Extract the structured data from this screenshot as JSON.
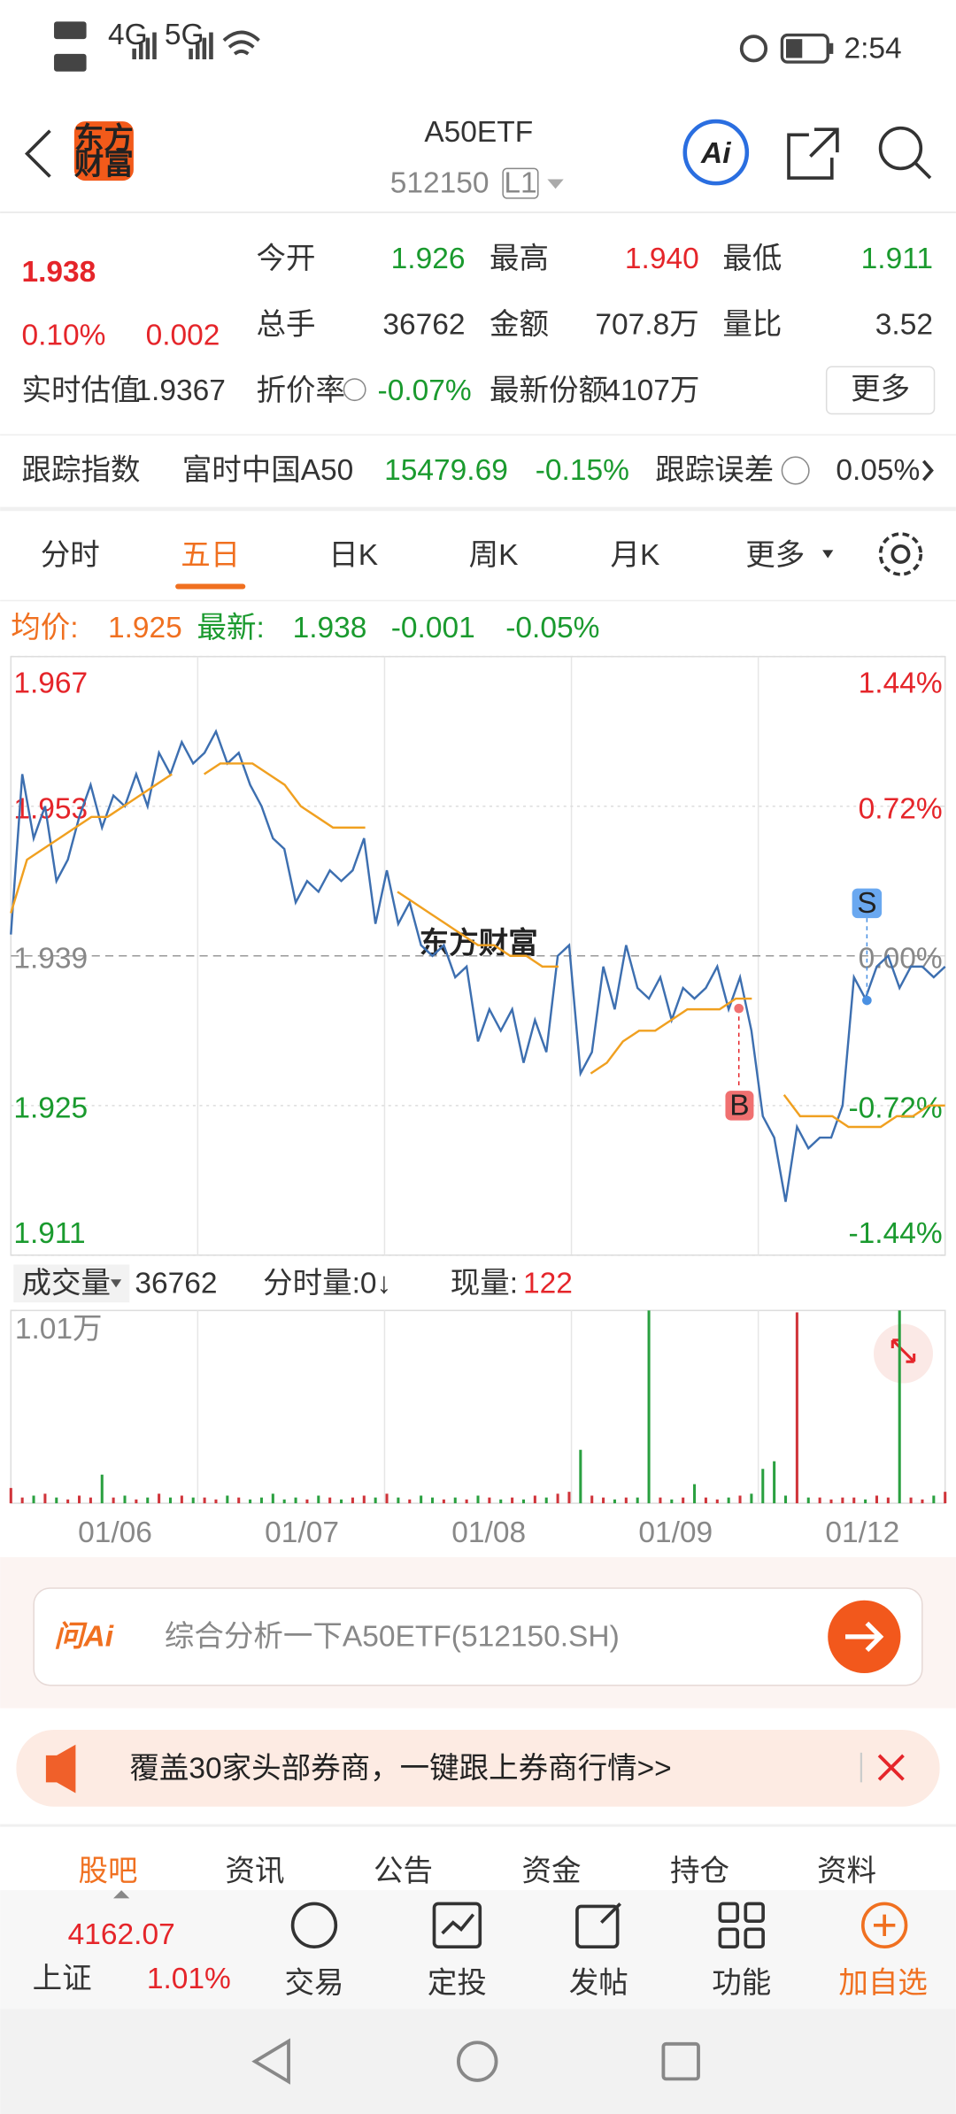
{
  "status_bar": {
    "network_1": "4G",
    "network_2": "5G",
    "time": "2:54"
  },
  "header": {
    "logo_line1": "东方",
    "logo_line2": "财富",
    "title": "A50ETF",
    "code": "512150",
    "level": "L1",
    "ai": "Ai"
  },
  "quote": {
    "price": "1.938",
    "change_pct": "0.10%",
    "change": "0.002",
    "fields": [
      {
        "label": "今开",
        "value": "1.926"
      },
      {
        "label": "最高",
        "value": "1.940"
      },
      {
        "label": "最低",
        "value": "1.911"
      },
      {
        "label": "总手",
        "value": "36762"
      },
      {
        "label": "金额",
        "value": "707.8万"
      },
      {
        "label": "量比",
        "value": "3.52"
      }
    ],
    "estimate_label": "实时估值",
    "estimate": "1.9367",
    "discount_label": "折价率",
    "discount": "-0.07%",
    "shares_label": "最新份额",
    "shares": "4107万",
    "more": "更多"
  },
  "tracking": {
    "label": "跟踪指数",
    "index": "富时中国A50",
    "index_value": "15479.69",
    "index_change": "-0.15%",
    "error_label": "跟踪误差",
    "error": "0.05%"
  },
  "tabs": [
    {
      "label": "分时"
    },
    {
      "label": "五日",
      "active": true
    },
    {
      "label": "日K"
    },
    {
      "label": "周K"
    },
    {
      "label": "月K"
    },
    {
      "label": "更多"
    }
  ],
  "chart_summary": {
    "avg_label": "均价:",
    "avg": "1.925",
    "latest_label": "最新:",
    "latest": "1.938",
    "change": "-0.001",
    "change_pct": "-0.05%"
  },
  "chart": {
    "type": "line",
    "watermark": "东方财富",
    "ylim": [
      1.911,
      1.967
    ],
    "yticks": [
      1.967,
      1.953,
      1.939,
      1.925,
      1.911
    ],
    "y2lim": [
      -1.44,
      1.44
    ],
    "y2ticks": [
      {
        "value": 1.44,
        "label": "1.44%"
      },
      {
        "value": 0.72,
        "label": "0.72%"
      },
      {
        "value": 0,
        "label": "0.00%"
      },
      {
        "value": -0.72,
        "label": "-0.72%"
      },
      {
        "value": -1.44,
        "label": "-1.44%"
      }
    ],
    "x_labels": [
      "01/06",
      "01/07",
      "01/08",
      "01/09",
      "01/12"
    ],
    "markers": [
      "B",
      "S"
    ],
    "series": [
      {
        "color": "#3d6fb0",
        "values": [
          1.941,
          1.956,
          1.95,
          1.953,
          1.946,
          1.948,
          1.952,
          1.955,
          1.951,
          1.954,
          1.953,
          1.956,
          1.953,
          1.958,
          1.956,
          1.959,
          1.957,
          1.958,
          1.96,
          1.957,
          1.958,
          1.955,
          1.953,
          1.95,
          1.949,
          1.944,
          1.946,
          1.945,
          1.947,
          1.946,
          1.947,
          1.95,
          1.942,
          1.947,
          1.942,
          1.944,
          1.94,
          1.939,
          1.94,
          1.937,
          1.938,
          1.931,
          1.934,
          1.932,
          1.934,
          1.929,
          1.933,
          1.93,
          1.939,
          1.94,
          1.928,
          1.93,
          1.938,
          1.934,
          1.94,
          1.936,
          1.935,
          1.937,
          1.933,
          1.936,
          1.935,
          1.936,
          1.938,
          1.934,
          1.937,
          1.932,
          1.924,
          1.922,
          1.916,
          1.923,
          1.921,
          1.922,
          1.922,
          1.925,
          1.937,
          1.935,
          1.938,
          1.939,
          1.936,
          1.938,
          1.938,
          1.937,
          1.938
        ]
      },
      {
        "color": "#f0a020",
        "values": [
          1.943,
          1.948,
          1.949,
          1.95,
          1.951,
          1.952,
          1.952,
          1.953,
          1.954,
          1.955,
          1.956,
          null,
          1.956,
          1.957,
          1.957,
          1.957,
          1.956,
          1.955,
          1.953,
          1.952,
          1.951,
          1.951,
          1.951,
          null,
          1.945,
          1.944,
          1.943,
          1.942,
          1.941,
          1.94,
          1.94,
          1.939,
          1.939,
          1.938,
          1.938,
          null,
          1.928,
          1.929,
          1.931,
          1.932,
          1.932,
          1.933,
          1.934,
          1.934,
          1.934,
          1.935,
          1.935,
          null,
          1.926,
          1.924,
          1.924,
          1.924,
          1.923,
          1.923,
          1.923,
          1.924,
          1.924,
          1.925,
          1.925
        ]
      }
    ]
  },
  "volume": {
    "label": "成交量",
    "total": "36762",
    "tick_label": "分时量:0↓",
    "current_label": "现量:",
    "current": "122",
    "ylim": [
      0,
      10100
    ],
    "yticks": [
      {
        "value": 10100,
        "label": "1.01万"
      }
    ],
    "values": [
      800,
      300,
      400,
      500,
      300,
      200,
      400,
      300,
      1500,
      300,
      400,
      200,
      300,
      500,
      300,
      400,
      300,
      300,
      200,
      400,
      300,
      200,
      300,
      500,
      200,
      300,
      200,
      400,
      300,
      200,
      300,
      400,
      300,
      500,
      300,
      200,
      400,
      300,
      200,
      300,
      200,
      400,
      300,
      200,
      300,
      200,
      400,
      300,
      500,
      600,
      2800,
      400,
      300,
      200,
      300,
      300,
      10100,
      300,
      200,
      300,
      1000,
      300,
      200,
      300,
      400,
      500,
      1800,
      2200,
      400,
      10000,
      300,
      300,
      200,
      300,
      300,
      200,
      400,
      300,
      10100,
      300,
      200,
      400,
      600
    ]
  },
  "ai_box": {
    "brand": "问Ai",
    "placeholder": "综合分析一下A50ETF(512150.SH)"
  },
  "banner": {
    "text": "覆盖30家头部券商，一键跟上券商行情>>"
  },
  "sub_tabs": [
    "股吧",
    "资讯",
    "公告",
    "资金",
    "持仓",
    "资料"
  ],
  "bottom_bar": {
    "index_value": "4162.07",
    "index_name": "上证",
    "index_change": "1.01%",
    "actions": [
      "交易",
      "定投",
      "发帖",
      "功能",
      "加自选"
    ]
  }
}
